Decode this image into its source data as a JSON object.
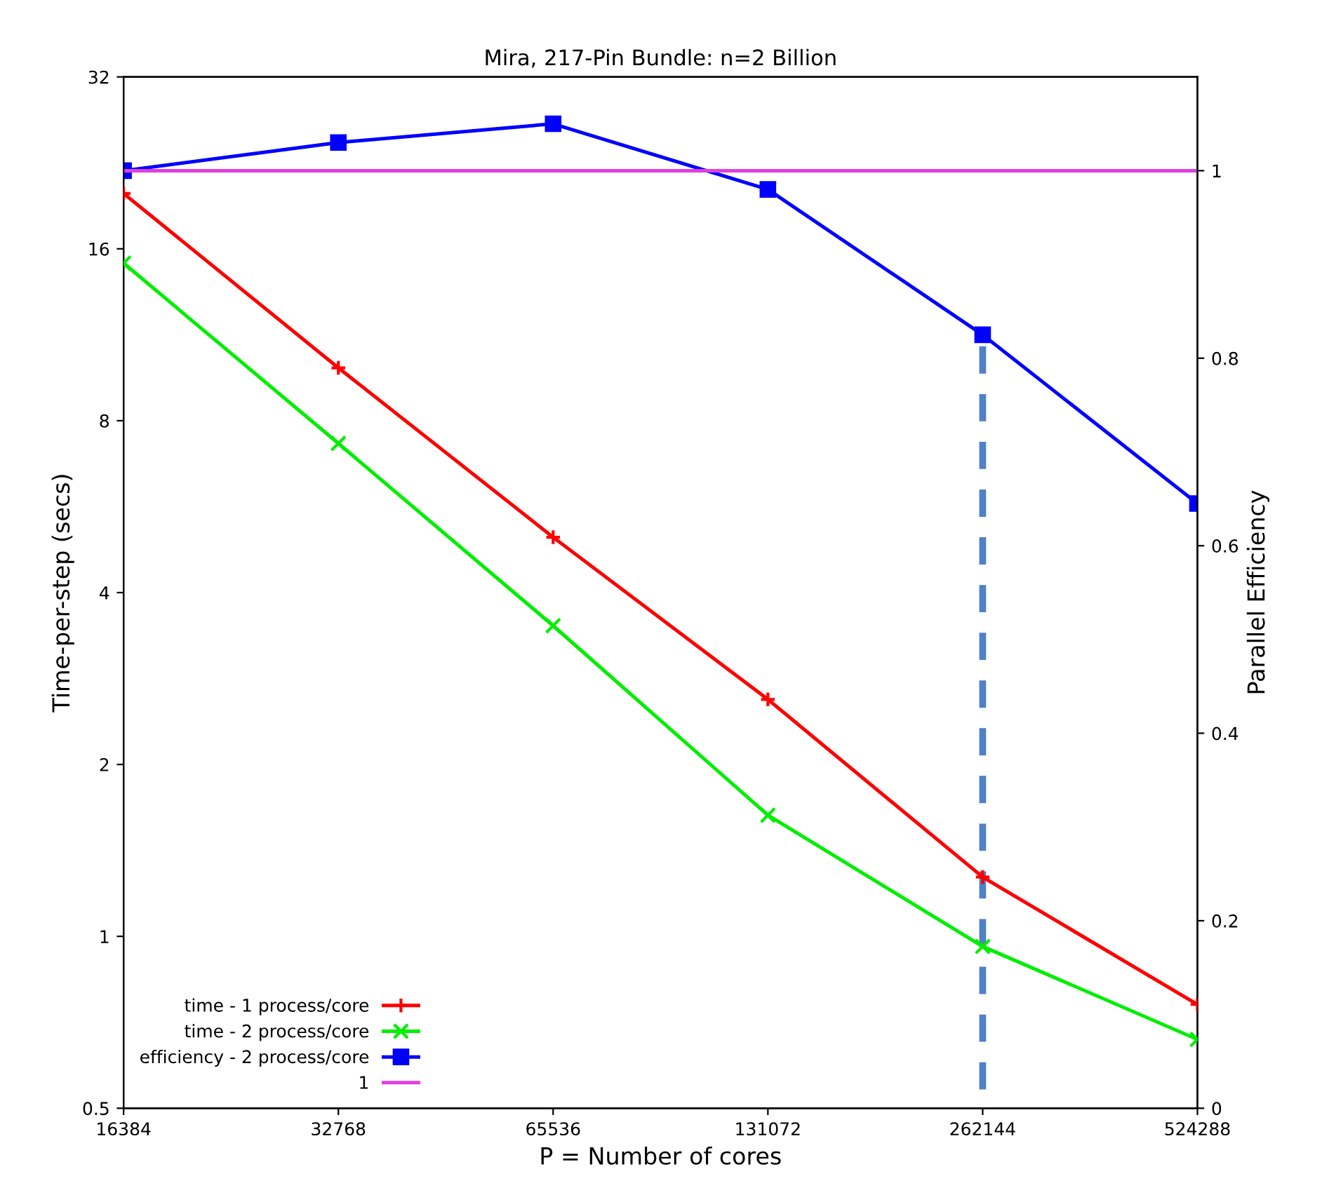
{
  "chart_data": {
    "type": "line",
    "title": "Mira, 217-Pin Bundle: n=2 Billion",
    "xlabel": "P = Number of cores",
    "ylabel": "Time-per-step (secs)",
    "y2label": "Parallel Efficiency",
    "x": [
      16384,
      32768,
      65536,
      131072,
      262144,
      524288
    ],
    "series": [
      {
        "name": "time - 1 process/core",
        "color": "#ff0000",
        "marker": "plus",
        "values": [
          20.0,
          9.9,
          5.0,
          2.6,
          1.27,
          0.76
        ]
      },
      {
        "name": "time - 2 process/core",
        "color": "#00ee00",
        "marker": "cross",
        "values": [
          15.1,
          7.3,
          3.5,
          1.63,
          0.96,
          0.66
        ]
      },
      {
        "name": "efficiency - 2 process/core",
        "color": "#0000ff",
        "marker": "square",
        "axis": "y2",
        "values": [
          1.0,
          1.03,
          1.05,
          0.98,
          0.825,
          0.645
        ]
      },
      {
        "name": "1",
        "color": "#e040e0",
        "marker": "none",
        "axis": "y2",
        "x": [
          16384,
          524288
        ],
        "values": [
          1,
          1
        ]
      },
      {
        "color": "#4f81c7",
        "marker": "none",
        "line_style": "dashed",
        "axis": "y2",
        "x": [
          262144,
          262144
        ],
        "values": [
          0.02,
          0.825
        ]
      }
    ],
    "log": "xy",
    "xlim": [
      16384,
      524288
    ],
    "xticks": [
      16384,
      32768,
      65536,
      131072,
      262144,
      524288
    ],
    "ylim": [
      0.5,
      32
    ],
    "yticks": [
      0.5,
      1,
      2,
      4,
      8,
      16,
      32
    ],
    "y2lim": [
      0,
      1.1
    ],
    "y2ticks": [
      0,
      0.2,
      0.4,
      0.6,
      0.8,
      1
    ],
    "grid": false,
    "legend": "bottom left"
  }
}
